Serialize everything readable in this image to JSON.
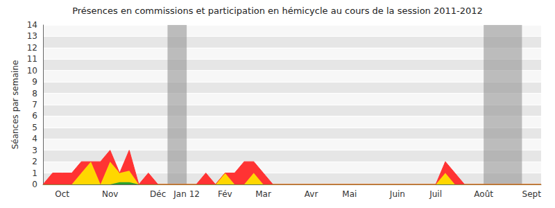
{
  "chart_data": {
    "type": "area",
    "title": "Présences en commissions et participation en hémicycle au cours de la session 2011-2012",
    "y_label": "Séances par semaine",
    "categories": [
      null,
      null,
      "Oct",
      null,
      null,
      null,
      null,
      "Nov",
      null,
      null,
      null,
      null,
      "Déc",
      null,
      null,
      "Jan 12",
      null,
      null,
      null,
      "Fév",
      null,
      null,
      null,
      "Mar",
      null,
      null,
      null,
      null,
      "Avr",
      null,
      null,
      null,
      "Mai",
      null,
      null,
      null,
      null,
      "Juin",
      null,
      null,
      null,
      "Juil",
      null,
      null,
      null,
      null,
      "Août",
      null,
      null,
      null,
      null,
      "Sept",
      null
    ],
    "series": [
      {
        "color": "#2ca02c",
        "values": [
          0,
          0,
          0,
          0,
          0,
          0,
          0,
          0,
          0.2,
          0.2,
          0,
          0,
          0,
          0,
          0,
          0,
          0,
          0,
          0,
          0,
          0,
          0,
          0,
          0,
          0,
          0,
          0,
          0,
          0,
          0,
          0,
          0,
          0,
          0,
          0,
          0,
          0,
          0,
          0,
          0,
          0,
          0,
          0,
          0,
          0,
          0,
          0,
          0,
          0,
          0,
          0,
          0,
          0
        ]
      },
      {
        "color": "#ffd700",
        "values": [
          0,
          0,
          0,
          0,
          1,
          2,
          0,
          2,
          0.8,
          1,
          0,
          0,
          0,
          0,
          0,
          0,
          0,
          0,
          0,
          1,
          0,
          0,
          1,
          0,
          0,
          0,
          0,
          0,
          0,
          0,
          0,
          0,
          0,
          0,
          0,
          0,
          0,
          0,
          0,
          0,
          0,
          0,
          1,
          0,
          0,
          0,
          0,
          0,
          0,
          0,
          0,
          0,
          0
        ]
      },
      {
        "color": "#ff3333",
        "values": [
          0,
          1,
          1,
          1,
          1,
          0,
          2,
          1,
          0,
          1.8,
          0,
          1,
          0,
          0,
          0,
          0,
          0,
          1,
          0,
          0,
          1,
          2,
          1,
          1,
          0,
          0,
          0,
          0,
          0,
          0,
          0,
          0,
          0,
          0,
          0,
          0,
          0,
          0,
          0,
          0,
          0,
          0,
          1,
          1,
          0,
          0,
          0,
          0,
          0,
          0,
          0,
          0,
          0
        ]
      }
    ],
    "shaded_ranges": [
      [
        13,
        15
      ],
      [
        46,
        50
      ]
    ],
    "stacked": true,
    "grid": true,
    "ylim": [
      0,
      14
    ],
    "yticks": [
      0,
      1,
      2,
      3,
      4,
      5,
      6,
      7,
      8,
      9,
      10,
      11,
      12,
      13,
      14
    ]
  }
}
